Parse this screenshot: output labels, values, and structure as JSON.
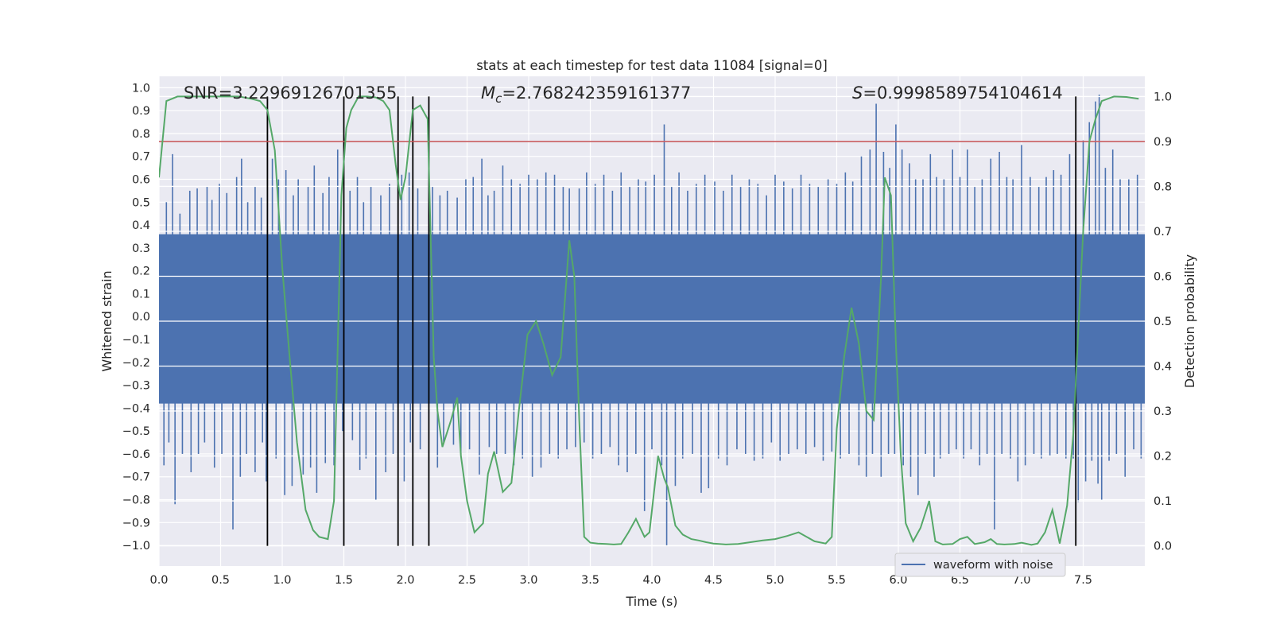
{
  "chart_data": {
    "type": "line",
    "title": "stats at each timestep for test data 11084 [signal=0]",
    "xlabel": "Time (s)",
    "ylabel_left": "Whitened strain",
    "ylabel_right": "Detection probability",
    "xlim": [
      0.0,
      8.0
    ],
    "ylim_left": [
      -1.09,
      1.05
    ],
    "ylim_right": [
      -0.045,
      1.045
    ],
    "x_ticks": [
      "0.0",
      "0.5",
      "1.0",
      "1.5",
      "2.0",
      "2.5",
      "3.0",
      "3.5",
      "4.0",
      "4.5",
      "5.0",
      "5.5",
      "6.0",
      "6.5",
      "7.0",
      "7.5"
    ],
    "y_ticks_left": [
      "1.0",
      "0.9",
      "0.8",
      "0.7",
      "0.6",
      "0.5",
      "0.4",
      "0.3",
      "0.2",
      "0.1",
      "0.0",
      "−0.1",
      "−0.2",
      "−0.3",
      "−0.4",
      "−0.5",
      "−0.6",
      "−0.7",
      "−0.8",
      "−0.9",
      "−1.0"
    ],
    "y_ticks_right": [
      "1.0",
      "0.9",
      "0.8",
      "0.7",
      "0.6",
      "0.5",
      "0.4",
      "0.3",
      "0.2",
      "0.1",
      "0.0"
    ],
    "grid": true,
    "legend": {
      "position": "bottom-right",
      "entries": [
        "waveform with noise"
      ]
    },
    "annotations": {
      "snr": "SNR=3.22969126701355",
      "mc_symbol": "M",
      "mc_sub": "c",
      "mc_value": "=2.768242359161377",
      "s_symbol": "S",
      "s_value": "=0.9998589754104614"
    },
    "threshold_right": 0.9,
    "event_lines_x": [
      0.88,
      1.5,
      1.94,
      2.06,
      2.19,
      7.44
    ],
    "waveform": {
      "name": "waveform with noise",
      "color": "#4c72b0",
      "dense_band": [
        -0.38,
        0.36
      ],
      "spikes_up": [
        [
          0.06,
          0.5
        ],
        [
          0.11,
          0.71
        ],
        [
          0.17,
          0.45
        ],
        [
          0.25,
          0.55
        ],
        [
          0.31,
          0.56
        ],
        [
          0.39,
          0.57
        ],
        [
          0.43,
          0.51
        ],
        [
          0.49,
          0.58
        ],
        [
          0.55,
          0.54
        ],
        [
          0.63,
          0.61
        ],
        [
          0.67,
          0.69
        ],
        [
          0.72,
          0.5
        ],
        [
          0.78,
          0.57
        ],
        [
          0.83,
          0.52
        ],
        [
          0.92,
          0.69
        ],
        [
          0.97,
          0.6
        ],
        [
          1.03,
          0.64
        ],
        [
          1.09,
          0.53
        ],
        [
          1.13,
          0.6
        ],
        [
          1.21,
          0.57
        ],
        [
          1.26,
          0.66
        ],
        [
          1.33,
          0.54
        ],
        [
          1.38,
          0.61
        ],
        [
          1.45,
          0.73
        ],
        [
          1.55,
          0.55
        ],
        [
          1.61,
          0.61
        ],
        [
          1.66,
          0.5
        ],
        [
          1.72,
          0.57
        ],
        [
          1.8,
          0.53
        ],
        [
          1.87,
          0.58
        ],
        [
          1.97,
          0.62
        ],
        [
          2.03,
          0.63
        ],
        [
          2.1,
          0.56
        ],
        [
          2.22,
          0.57
        ],
        [
          2.28,
          0.53
        ],
        [
          2.34,
          0.55
        ],
        [
          2.42,
          0.52
        ],
        [
          2.49,
          0.6
        ],
        [
          2.55,
          0.61
        ],
        [
          2.62,
          0.69
        ],
        [
          2.67,
          0.53
        ],
        [
          2.72,
          0.55
        ],
        [
          2.79,
          0.66
        ],
        [
          2.86,
          0.6
        ],
        [
          2.93,
          0.58
        ],
        [
          3.0,
          0.62
        ],
        [
          3.07,
          0.6
        ],
        [
          3.14,
          0.63
        ],
        [
          3.21,
          0.62
        ],
        [
          3.28,
          0.57
        ],
        [
          3.33,
          0.56
        ],
        [
          3.41,
          0.56
        ],
        [
          3.47,
          0.63
        ],
        [
          3.54,
          0.58
        ],
        [
          3.61,
          0.62
        ],
        [
          3.68,
          0.55
        ],
        [
          3.75,
          0.63
        ],
        [
          3.82,
          0.57
        ],
        [
          3.89,
          0.6
        ],
        [
          3.95,
          0.59
        ],
        [
          4.02,
          0.62
        ],
        [
          4.1,
          0.84
        ],
        [
          4.16,
          0.57
        ],
        [
          4.22,
          0.63
        ],
        [
          4.29,
          0.55
        ],
        [
          4.36,
          0.58
        ],
        [
          4.43,
          0.62
        ],
        [
          4.51,
          0.59
        ],
        [
          4.58,
          0.55
        ],
        [
          4.65,
          0.62
        ],
        [
          4.72,
          0.57
        ],
        [
          4.79,
          0.6
        ],
        [
          4.86,
          0.58
        ],
        [
          4.93,
          0.53
        ],
        [
          5.0,
          0.62
        ],
        [
          5.07,
          0.59
        ],
        [
          5.14,
          0.56
        ],
        [
          5.21,
          0.62
        ],
        [
          5.28,
          0.58
        ],
        [
          5.35,
          0.57
        ],
        [
          5.43,
          0.6
        ],
        [
          5.5,
          0.58
        ],
        [
          5.57,
          0.63
        ],
        [
          5.63,
          0.59
        ],
        [
          5.7,
          0.7
        ],
        [
          5.77,
          0.73
        ],
        [
          5.82,
          0.93
        ],
        [
          5.88,
          0.72
        ],
        [
          5.93,
          0.65
        ],
        [
          5.98,
          0.84
        ],
        [
          6.03,
          0.73
        ],
        [
          6.09,
          0.67
        ],
        [
          6.14,
          0.6
        ],
        [
          6.2,
          0.6
        ],
        [
          6.26,
          0.71
        ],
        [
          6.31,
          0.61
        ],
        [
          6.37,
          0.6
        ],
        [
          6.44,
          0.73
        ],
        [
          6.5,
          0.61
        ],
        [
          6.56,
          0.73
        ],
        [
          6.62,
          0.57
        ],
        [
          6.68,
          0.6
        ],
        [
          6.75,
          0.69
        ],
        [
          6.82,
          0.72
        ],
        [
          6.88,
          0.61
        ],
        [
          6.93,
          0.6
        ],
        [
          7.0,
          0.75
        ],
        [
          7.07,
          0.61
        ],
        [
          7.14,
          0.57
        ],
        [
          7.2,
          0.61
        ],
        [
          7.26,
          0.64
        ],
        [
          7.32,
          0.62
        ],
        [
          7.39,
          0.71
        ],
        [
          7.44,
          0.7
        ],
        [
          7.5,
          0.77
        ],
        [
          7.55,
          0.85
        ],
        [
          7.6,
          0.94
        ],
        [
          7.63,
          0.97
        ],
        [
          7.68,
          0.65
        ],
        [
          7.74,
          0.73
        ],
        [
          7.8,
          0.6
        ],
        [
          7.87,
          0.6
        ],
        [
          7.94,
          0.62
        ]
      ],
      "spikes_down": [
        [
          0.04,
          -0.65
        ],
        [
          0.08,
          -0.55
        ],
        [
          0.13,
          -0.82
        ],
        [
          0.19,
          -0.6
        ],
        [
          0.26,
          -0.68
        ],
        [
          0.32,
          -0.6
        ],
        [
          0.37,
          -0.55
        ],
        [
          0.45,
          -0.66
        ],
        [
          0.51,
          -0.6
        ],
        [
          0.6,
          -0.93
        ],
        [
          0.66,
          -0.7
        ],
        [
          0.71,
          -0.6
        ],
        [
          0.78,
          -0.68
        ],
        [
          0.84,
          -0.55
        ],
        [
          0.87,
          -0.72
        ],
        [
          0.95,
          -0.62
        ],
        [
          1.02,
          -0.78
        ],
        [
          1.08,
          -0.74
        ],
        [
          1.17,
          -0.69
        ],
        [
          1.23,
          -0.66
        ],
        [
          1.28,
          -0.77
        ],
        [
          1.35,
          -0.64
        ],
        [
          1.42,
          -0.65
        ],
        [
          1.49,
          -0.5
        ],
        [
          1.57,
          -0.54
        ],
        [
          1.63,
          -0.67
        ],
        [
          1.68,
          -0.62
        ],
        [
          1.76,
          -0.8
        ],
        [
          1.84,
          -0.68
        ],
        [
          1.9,
          -0.6
        ],
        [
          1.99,
          -0.72
        ],
        [
          2.04,
          -0.55
        ],
        [
          2.12,
          -0.58
        ],
        [
          2.26,
          -0.66
        ],
        [
          2.31,
          -0.55
        ],
        [
          2.39,
          -0.56
        ],
        [
          2.45,
          -0.6
        ],
        [
          2.52,
          -0.58
        ],
        [
          2.6,
          -0.69
        ],
        [
          2.68,
          -0.57
        ],
        [
          2.74,
          -0.6
        ],
        [
          2.81,
          -0.6
        ],
        [
          2.88,
          -0.65
        ],
        [
          2.95,
          -0.62
        ],
        [
          3.03,
          -0.7
        ],
        [
          3.1,
          -0.66
        ],
        [
          3.17,
          -0.6
        ],
        [
          3.24,
          -0.62
        ],
        [
          3.31,
          -0.58
        ],
        [
          3.38,
          -0.57
        ],
        [
          3.45,
          -0.55
        ],
        [
          3.52,
          -0.62
        ],
        [
          3.59,
          -0.6
        ],
        [
          3.66,
          -0.57
        ],
        [
          3.73,
          -0.65
        ],
        [
          3.8,
          -0.68
        ],
        [
          3.87,
          -0.6
        ],
        [
          3.94,
          -0.85
        ],
        [
          4.0,
          -0.58
        ],
        [
          4.08,
          -0.65
        ],
        [
          4.12,
          -1.0
        ],
        [
          4.19,
          -0.74
        ],
        [
          4.25,
          -0.62
        ],
        [
          4.33,
          -0.6
        ],
        [
          4.4,
          -0.77
        ],
        [
          4.46,
          -0.75
        ],
        [
          4.54,
          -0.62
        ],
        [
          4.61,
          -0.65
        ],
        [
          4.69,
          -0.58
        ],
        [
          4.76,
          -0.6
        ],
        [
          4.83,
          -0.63
        ],
        [
          4.9,
          -0.62
        ],
        [
          4.97,
          -0.55
        ],
        [
          5.04,
          -0.63
        ],
        [
          5.11,
          -0.6
        ],
        [
          5.18,
          -0.58
        ],
        [
          5.25,
          -0.6
        ],
        [
          5.32,
          -0.57
        ],
        [
          5.39,
          -0.63
        ],
        [
          5.46,
          -0.59
        ],
        [
          5.53,
          -0.62
        ],
        [
          5.6,
          -0.6
        ],
        [
          5.68,
          -0.65
        ],
        [
          5.74,
          -0.7
        ],
        [
          5.79,
          -0.6
        ],
        [
          5.86,
          -0.7
        ],
        [
          5.92,
          -0.6
        ],
        [
          5.97,
          -0.6
        ],
        [
          6.04,
          -0.65
        ],
        [
          6.1,
          -0.7
        ],
        [
          6.16,
          -0.78
        ],
        [
          6.22,
          -0.6
        ],
        [
          6.29,
          -0.7
        ],
        [
          6.34,
          -0.62
        ],
        [
          6.41,
          -0.6
        ],
        [
          6.47,
          -0.58
        ],
        [
          6.53,
          -0.62
        ],
        [
          6.59,
          -0.58
        ],
        [
          6.66,
          -0.65
        ],
        [
          6.72,
          -0.6
        ],
        [
          6.78,
          -0.93
        ],
        [
          6.84,
          -0.6
        ],
        [
          6.91,
          -0.62
        ],
        [
          6.97,
          -0.72
        ],
        [
          7.03,
          -0.65
        ],
        [
          7.1,
          -0.6
        ],
        [
          7.16,
          -0.62
        ],
        [
          7.23,
          -0.61
        ],
        [
          7.29,
          -0.6
        ],
        [
          7.36,
          -0.62
        ],
        [
          7.42,
          -0.62
        ],
        [
          7.46,
          -0.81
        ],
        [
          7.52,
          -0.72
        ],
        [
          7.57,
          -0.63
        ],
        [
          7.62,
          -0.73
        ],
        [
          7.65,
          -0.8
        ],
        [
          7.71,
          -0.63
        ],
        [
          7.77,
          -0.6
        ],
        [
          7.84,
          -0.7
        ],
        [
          7.91,
          -0.58
        ],
        [
          7.97,
          -0.62
        ]
      ]
    },
    "probability": {
      "color": "#55a868",
      "x": [
        0.0,
        0.06,
        0.15,
        0.25,
        0.35,
        0.45,
        0.55,
        0.65,
        0.75,
        0.82,
        0.88,
        0.94,
        1.0,
        1.06,
        1.12,
        1.19,
        1.25,
        1.3,
        1.37,
        1.42,
        1.46,
        1.48,
        1.52,
        1.56,
        1.62,
        1.69,
        1.76,
        1.82,
        1.87,
        1.92,
        1.96,
        2.0,
        2.06,
        2.12,
        2.18,
        2.23,
        2.26,
        2.3,
        2.37,
        2.42,
        2.45,
        2.5,
        2.56,
        2.63,
        2.67,
        2.72,
        2.79,
        2.86,
        2.92,
        2.99,
        3.06,
        3.12,
        3.19,
        3.26,
        3.33,
        3.37,
        3.41,
        3.45,
        3.5,
        3.56,
        3.63,
        3.69,
        3.75,
        3.81,
        3.87,
        3.94,
        3.98,
        4.05,
        4.1,
        4.13,
        4.19,
        4.25,
        4.32,
        4.38,
        4.44,
        4.5,
        4.6,
        4.7,
        4.8,
        4.9,
        5.0,
        5.1,
        5.19,
        5.32,
        5.41,
        5.46,
        5.5,
        5.56,
        5.62,
        5.68,
        5.74,
        5.8,
        5.86,
        5.89,
        5.94,
        5.98,
        6.02,
        6.06,
        6.12,
        6.18,
        6.25,
        6.3,
        6.36,
        6.44,
        6.5,
        6.56,
        6.62,
        6.7,
        6.75,
        6.8,
        6.86,
        6.94,
        7.0,
        7.08,
        7.13,
        7.19,
        7.25,
        7.31,
        7.37,
        7.42,
        7.46,
        7.5,
        7.55,
        7.6,
        7.65,
        7.75,
        7.85,
        7.95
      ],
      "y": [
        0.82,
        0.99,
        1.0,
        1.0,
        1.0,
        1.0,
        1.0,
        1.0,
        0.995,
        0.99,
        0.97,
        0.88,
        0.62,
        0.42,
        0.23,
        0.08,
        0.035,
        0.02,
        0.015,
        0.1,
        0.55,
        0.78,
        0.93,
        0.97,
        1.0,
        1.0,
        0.998,
        0.99,
        0.97,
        0.85,
        0.77,
        0.82,
        0.97,
        0.98,
        0.95,
        0.42,
        0.3,
        0.22,
        0.28,
        0.33,
        0.2,
        0.1,
        0.03,
        0.05,
        0.16,
        0.21,
        0.12,
        0.14,
        0.3,
        0.47,
        0.5,
        0.45,
        0.38,
        0.42,
        0.68,
        0.6,
        0.28,
        0.02,
        0.007,
        0.005,
        0.004,
        0.003,
        0.004,
        0.03,
        0.06,
        0.02,
        0.03,
        0.2,
        0.15,
        0.13,
        0.045,
        0.025,
        0.015,
        0.012,
        0.008,
        0.005,
        0.003,
        0.004,
        0.008,
        0.012,
        0.015,
        0.022,
        0.03,
        0.01,
        0.005,
        0.02,
        0.26,
        0.42,
        0.53,
        0.45,
        0.3,
        0.28,
        0.6,
        0.82,
        0.78,
        0.45,
        0.2,
        0.05,
        0.01,
        0.04,
        0.1,
        0.01,
        0.003,
        0.004,
        0.015,
        0.02,
        0.004,
        0.008,
        0.015,
        0.004,
        0.003,
        0.004,
        0.007,
        0.002,
        0.005,
        0.03,
        0.08,
        0.005,
        0.09,
        0.25,
        0.48,
        0.7,
        0.9,
        0.95,
        0.99,
        1.0,
        0.999,
        0.995
      ]
    }
  }
}
